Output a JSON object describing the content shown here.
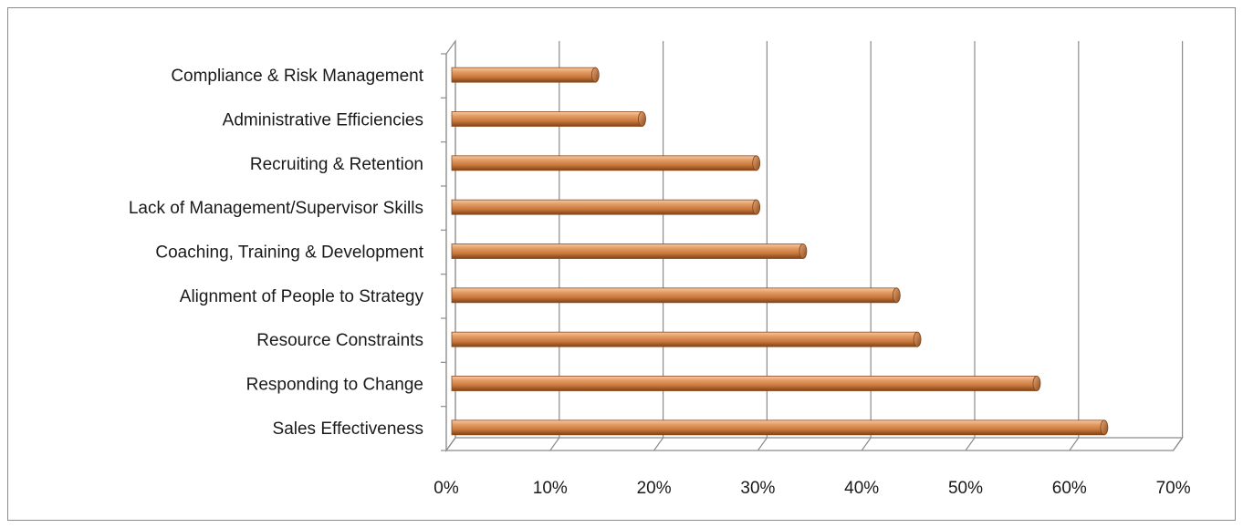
{
  "chart_data": {
    "type": "bar",
    "orientation": "horizontal",
    "categories": [
      "Compliance & Risk Management",
      "Administrative Efficiencies",
      "Recruiting & Retention",
      "Lack of Management/Supervisor Skills",
      "Coaching, Training & Development",
      "Alignment of People to Strategy",
      "Resource Constraints",
      "Responding to Change",
      "Sales Effectiveness"
    ],
    "values": [
      14,
      18.5,
      29.5,
      29.5,
      34,
      43,
      45,
      56.5,
      63
    ],
    "x_ticks": [
      "0%",
      "10%",
      "20%",
      "30%",
      "40%",
      "50%",
      "60%",
      "70%"
    ],
    "xlim": [
      0,
      70
    ],
    "x_unit": "%",
    "grid": true,
    "legend": "none",
    "style": "3d-cylinder",
    "bar_color": "#d4874e"
  }
}
